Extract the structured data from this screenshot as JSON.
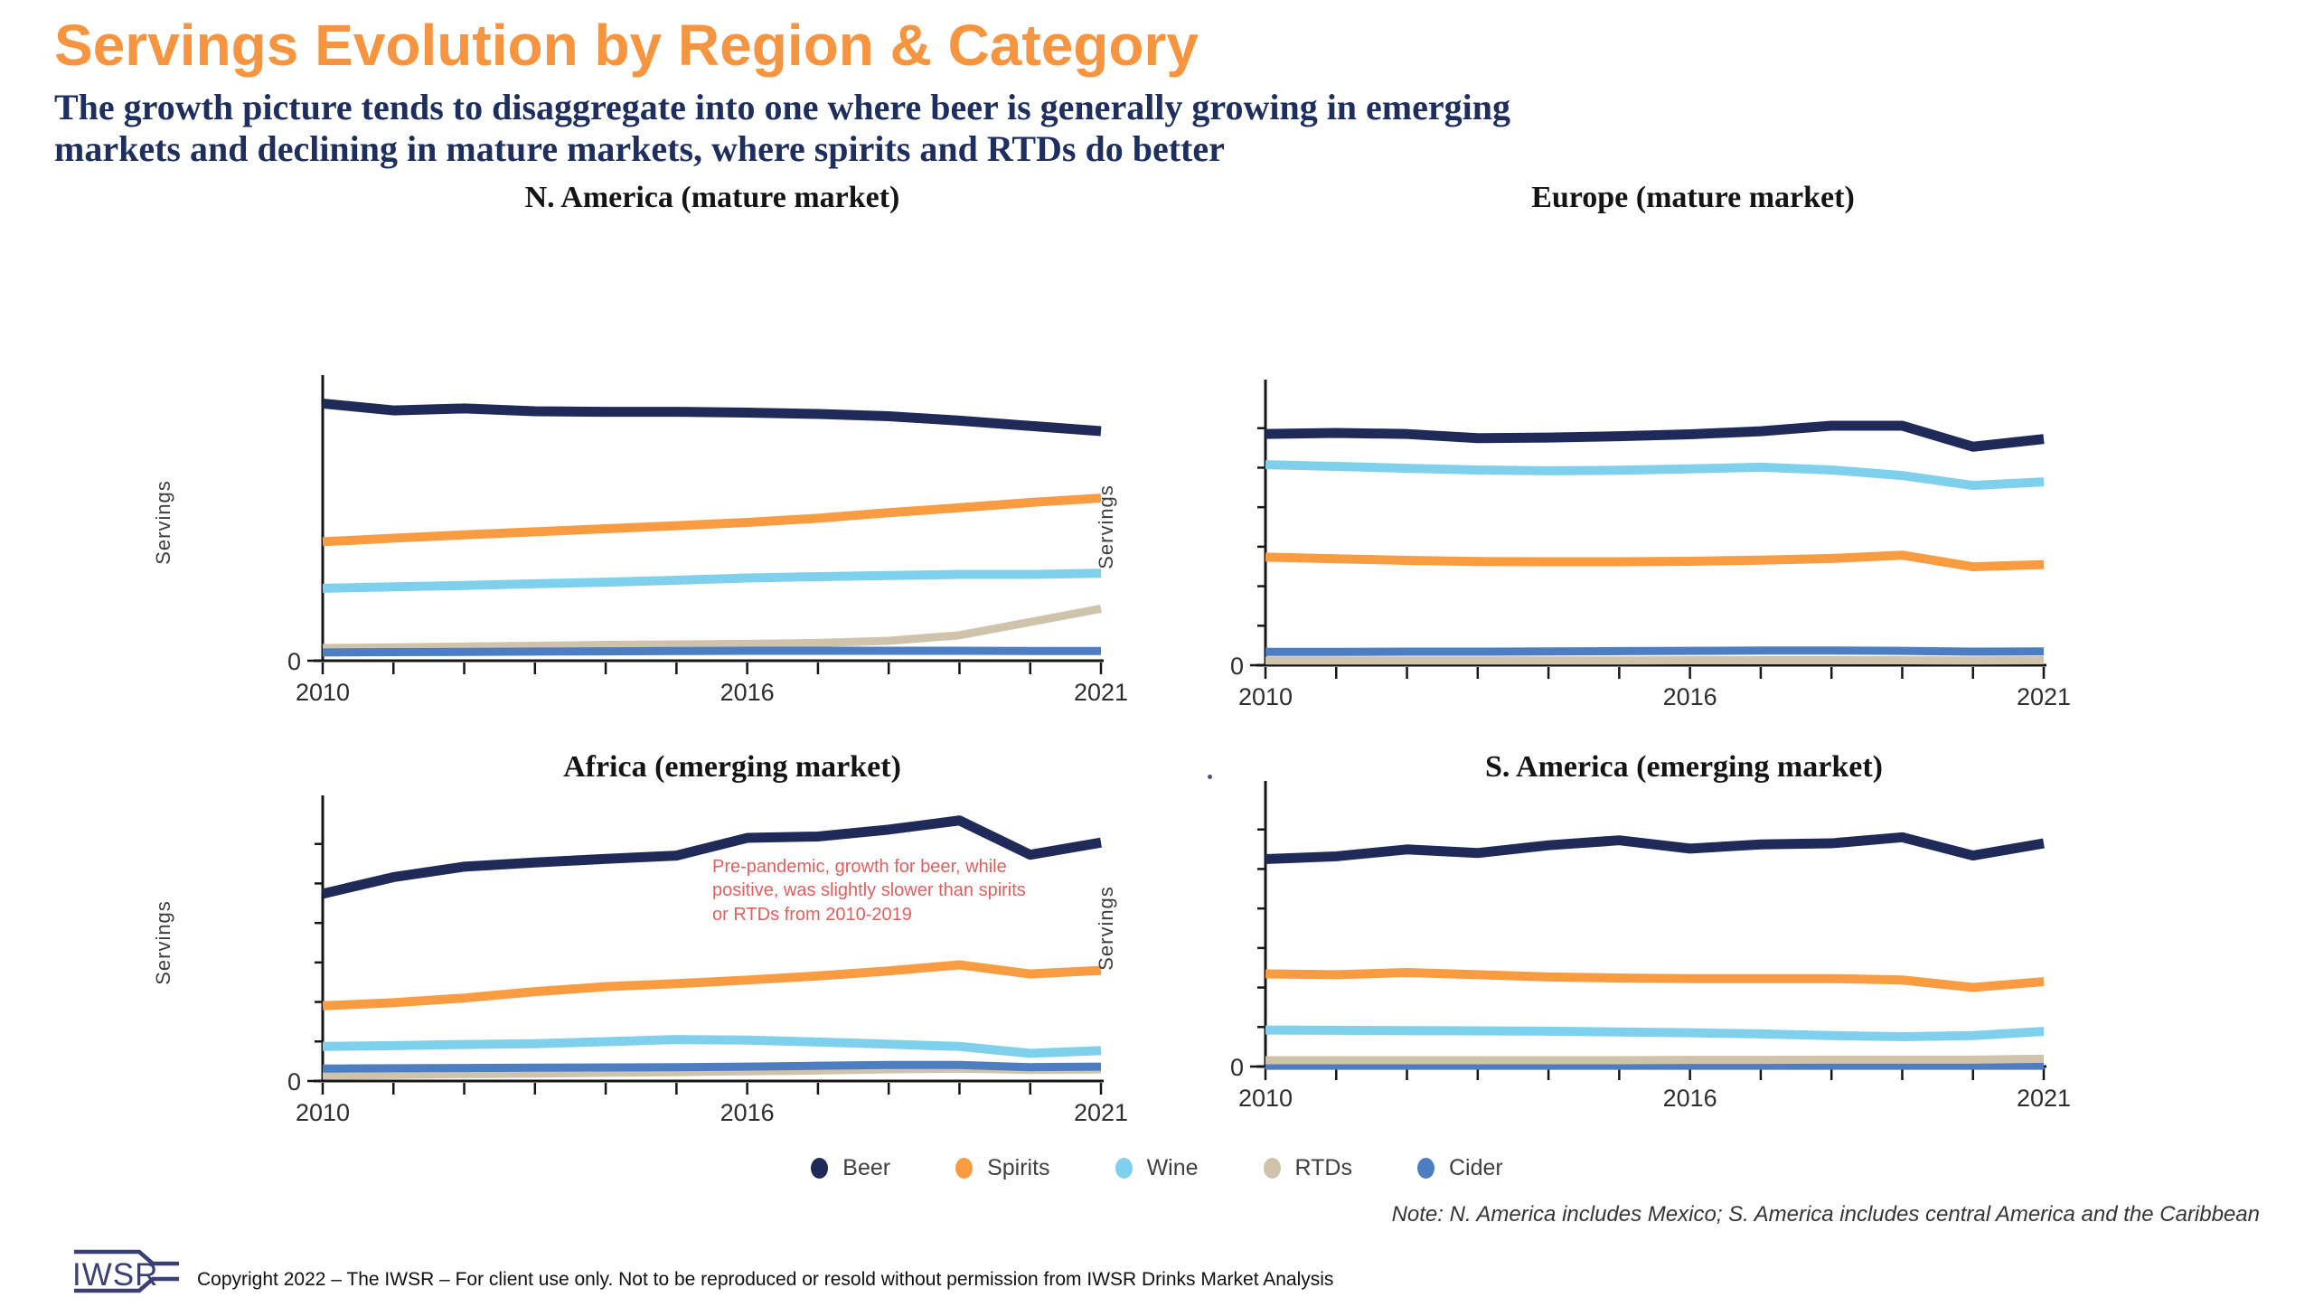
{
  "page": {
    "title": "Servings Evolution by Region & Category",
    "subtitle_lines": [
      "The growth picture tends to disaggregate into one where beer is generally growing in emerging",
      "markets and declining in mature markets, where spirits and RTDs do better"
    ],
    "note": "Note: N. America includes Mexico; S. America includes central America and the Caribbean",
    "footer": {
      "logo_text": "IWSR",
      "copyright": "Copyright 2022 – The IWSR – For client use only. Not to be reproduced or resold without permission from IWSR Drinks Market Analysis"
    }
  },
  "colors": {
    "title_orange": "#F79440",
    "subtitle_navy": "#1D2E5F",
    "beer": "#202A58",
    "spirits": "#F89B41",
    "wine": "#7FD0EC",
    "rtds": "#CFC3AC",
    "cider": "#4D7EC2",
    "annotation_red": "#E25F5F",
    "axis": "#151515",
    "tick_label": "#2E2E2E",
    "legend_label": "#3F3F3F",
    "logo_navy": "#3A3F78"
  },
  "legend": [
    {
      "label": "Beer",
      "color": "#202A58"
    },
    {
      "label": "Spirits",
      "color": "#F89B41"
    },
    {
      "label": "Wine",
      "color": "#7FD0EC"
    },
    {
      "label": "RTDs",
      "color": "#CFC3AC"
    },
    {
      "label": "Cider",
      "color": "#4D7EC2"
    }
  ],
  "chart_data": [
    {
      "type": "line",
      "title": "N. America (mature market)",
      "ylabel": "Servings",
      "y_zero_label": "0",
      "y_units": "relative (y-axis labeled only at 0)",
      "ylim": [
        0,
        1
      ],
      "y_minor_tick_count": 0,
      "x": [
        2010,
        2011,
        2012,
        2013,
        2014,
        2015,
        2016,
        2017,
        2018,
        2019,
        2020,
        2021
      ],
      "x_tick_labels": [
        "2010",
        "2016",
        "2021"
      ],
      "series": [
        {
          "name": "Beer",
          "color": "#202A58",
          "width": 11,
          "values": [
            0.93,
            0.905,
            0.912,
            0.902,
            0.9,
            0.9,
            0.897,
            0.892,
            0.884,
            0.868,
            0.849,
            0.83
          ]
        },
        {
          "name": "Spirits",
          "color": "#F89B41",
          "width": 10,
          "values": [
            0.43,
            0.443,
            0.455,
            0.466,
            0.477,
            0.488,
            0.5,
            0.515,
            0.535,
            0.553,
            0.572,
            0.588
          ]
        },
        {
          "name": "Wine",
          "color": "#7FD0EC",
          "width": 10,
          "values": [
            0.262,
            0.267,
            0.272,
            0.278,
            0.284,
            0.291,
            0.299,
            0.304,
            0.308,
            0.312,
            0.312,
            0.316
          ]
        },
        {
          "name": "RTDs",
          "color": "#CFC3AC",
          "width": 9,
          "values": [
            0.046,
            0.048,
            0.051,
            0.054,
            0.057,
            0.059,
            0.061,
            0.064,
            0.072,
            0.092,
            0.14,
            0.188
          ]
        },
        {
          "name": "Cider",
          "color": "#4D7EC2",
          "width": 9,
          "values": [
            0.03,
            0.031,
            0.032,
            0.033,
            0.034,
            0.035,
            0.036,
            0.036,
            0.036,
            0.036,
            0.035,
            0.035
          ]
        }
      ]
    },
    {
      "type": "line",
      "title": "Europe (mature market)",
      "ylabel": "Servings",
      "y_zero_label": "0",
      "y_units": "relative (y-axis labeled only at 0)",
      "ylim": [
        0,
        1
      ],
      "y_minor_tick_count": 6,
      "x": [
        2010,
        2011,
        2012,
        2013,
        2014,
        2015,
        2016,
        2017,
        2018,
        2019,
        2020,
        2021
      ],
      "x_tick_labels": [
        "2010",
        "2016",
        "2021"
      ],
      "series": [
        {
          "name": "Beer",
          "color": "#202A58",
          "width": 11,
          "values": [
            0.836,
            0.84,
            0.836,
            0.821,
            0.823,
            0.828,
            0.835,
            0.846,
            0.866,
            0.866,
            0.79,
            0.818
          ]
        },
        {
          "name": "Wine",
          "color": "#7FD0EC",
          "width": 10,
          "values": [
            0.725,
            0.719,
            0.712,
            0.706,
            0.703,
            0.705,
            0.71,
            0.716,
            0.706,
            0.686,
            0.65,
            0.663
          ]
        },
        {
          "name": "Spirits",
          "color": "#F89B41",
          "width": 10,
          "values": [
            0.391,
            0.385,
            0.379,
            0.375,
            0.374,
            0.374,
            0.376,
            0.38,
            0.386,
            0.398,
            0.356,
            0.364
          ]
        },
        {
          "name": "RTDs",
          "color": "#CFC3AC",
          "width": 9,
          "values": [
            0.017,
            0.017,
            0.017,
            0.017,
            0.017,
            0.017,
            0.018,
            0.018,
            0.018,
            0.018,
            0.017,
            0.018
          ]
        },
        {
          "name": "Cider",
          "color": "#4D7EC2",
          "width": 9,
          "values": [
            0.048,
            0.048,
            0.049,
            0.049,
            0.05,
            0.051,
            0.052,
            0.053,
            0.053,
            0.052,
            0.049,
            0.05
          ]
        }
      ]
    },
    {
      "type": "line",
      "title": "Africa (emerging market)",
      "ylabel": "Servings",
      "y_zero_label": "0",
      "y_units": "relative (y-axis labeled only at 0)",
      "ylim": [
        0,
        1
      ],
      "y_minor_tick_count": 6,
      "x": [
        2010,
        2011,
        2012,
        2013,
        2014,
        2015,
        2016,
        2017,
        2018,
        2019,
        2020,
        2021
      ],
      "x_tick_labels": [
        "2010",
        "2016",
        "2021"
      ],
      "annotation": {
        "text": "Pre-pandemic, growth for beer, while positive, was slightly slower than spirits or RTDs from 2010-2019",
        "color": "#E25F5F"
      },
      "series": [
        {
          "name": "Beer",
          "color": "#202A58",
          "width": 11,
          "values": [
            0.677,
            0.737,
            0.775,
            0.79,
            0.803,
            0.815,
            0.879,
            0.884,
            0.909,
            0.942,
            0.818,
            0.862
          ]
        },
        {
          "name": "Spirits",
          "color": "#F89B41",
          "width": 10,
          "values": [
            0.272,
            0.283,
            0.3,
            0.323,
            0.341,
            0.352,
            0.365,
            0.38,
            0.398,
            0.42,
            0.387,
            0.4
          ]
        },
        {
          "name": "Wine",
          "color": "#7FD0EC",
          "width": 10,
          "values": [
            0.125,
            0.128,
            0.132,
            0.135,
            0.142,
            0.15,
            0.148,
            0.141,
            0.133,
            0.125,
            0.1,
            0.11
          ]
        },
        {
          "name": "RTDs",
          "color": "#CFC3AC",
          "width": 9,
          "values": [
            0.02,
            0.022,
            0.025,
            0.027,
            0.03,
            0.032,
            0.035,
            0.038,
            0.042,
            0.045,
            0.04,
            0.042
          ]
        },
        {
          "name": "Cider",
          "color": "#4D7EC2",
          "width": 9,
          "values": [
            0.045,
            0.046,
            0.047,
            0.048,
            0.049,
            0.05,
            0.052,
            0.055,
            0.058,
            0.058,
            0.05,
            0.052
          ]
        }
      ]
    },
    {
      "type": "line",
      "title": "S. America (emerging market)",
      "ylabel": "Servings",
      "y_zero_label": "0",
      "y_units": "relative (y-axis labeled only at 0)",
      "ylim": [
        0,
        1
      ],
      "y_minor_tick_count": 6,
      "x": [
        2010,
        2011,
        2012,
        2013,
        2014,
        2015,
        2016,
        2017,
        2018,
        2019,
        2020,
        2021
      ],
      "x_tick_labels": [
        "2010",
        "2016",
        "2021"
      ],
      "series": [
        {
          "name": "Beer",
          "color": "#202A58",
          "width": 11,
          "values": [
            0.75,
            0.76,
            0.785,
            0.772,
            0.8,
            0.818,
            0.788,
            0.803,
            0.807,
            0.829,
            0.763,
            0.807
          ]
        },
        {
          "name": "Spirits",
          "color": "#F89B41",
          "width": 10,
          "values": [
            0.335,
            0.332,
            0.34,
            0.332,
            0.324,
            0.32,
            0.318,
            0.318,
            0.318,
            0.313,
            0.286,
            0.307
          ]
        },
        {
          "name": "Wine",
          "color": "#7FD0EC",
          "width": 10,
          "values": [
            0.132,
            0.131,
            0.13,
            0.129,
            0.128,
            0.125,
            0.122,
            0.118,
            0.112,
            0.108,
            0.112,
            0.127
          ]
        },
        {
          "name": "Cider",
          "color": "#4D7EC2",
          "width": 9,
          "values": [
            0.003,
            0.003,
            0.003,
            0.003,
            0.003,
            0.003,
            0.003,
            0.003,
            0.003,
            0.003,
            0.003,
            0.003
          ]
        },
        {
          "name": "RTDs",
          "color": "#CFC3AC",
          "width": 9,
          "values": [
            0.023,
            0.023,
            0.023,
            0.023,
            0.023,
            0.023,
            0.024,
            0.024,
            0.025,
            0.025,
            0.025,
            0.028
          ]
        }
      ]
    }
  ]
}
